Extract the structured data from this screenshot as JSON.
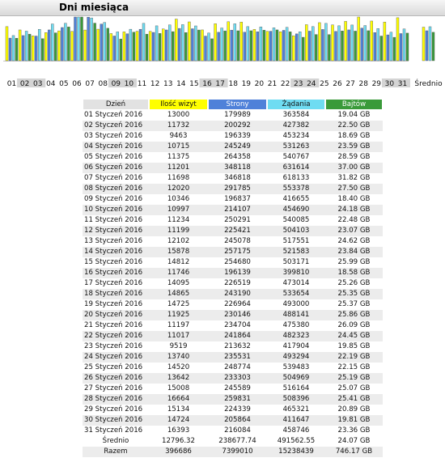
{
  "header": {
    "title": "Dni miesiąca"
  },
  "colors": {
    "visits": "#ffff00",
    "pages": "#4f81d9",
    "hits": "#6fdcf2",
    "bytes": "#3a9a3a",
    "day_header": "#e2e2e2"
  },
  "table": {
    "headers": {
      "day": "Dzień",
      "visits": "Ilość wizyt",
      "pages": "Strony",
      "hits": "Żądania",
      "bytes": "Bajtów"
    },
    "rows": [
      {
        "day": "01 Styczeń 2016",
        "visits": "13000",
        "pages": "179989",
        "hits": "363584",
        "bytes": "19.04 GB"
      },
      {
        "day": "02 Styczeń 2016",
        "visits": "11732",
        "pages": "200292",
        "hits": "427382",
        "bytes": "22.50 GB"
      },
      {
        "day": "03 Styczeń 2016",
        "visits": "9463",
        "pages": "196339",
        "hits": "453234",
        "bytes": "18.69 GB"
      },
      {
        "day": "04 Styczeń 2016",
        "visits": "10715",
        "pages": "245249",
        "hits": "531263",
        "bytes": "23.59 GB"
      },
      {
        "day": "05 Styczeń 2016",
        "visits": "11375",
        "pages": "264358",
        "hits": "540767",
        "bytes": "28.59 GB"
      },
      {
        "day": "06 Styczeń 2016",
        "visits": "11201",
        "pages": "348118",
        "hits": "631614",
        "bytes": "37.00 GB"
      },
      {
        "day": "07 Styczeń 2016",
        "visits": "11698",
        "pages": "346818",
        "hits": "618133",
        "bytes": "31.82 GB"
      },
      {
        "day": "08 Styczeń 2016",
        "visits": "12020",
        "pages": "291785",
        "hits": "553378",
        "bytes": "27.50 GB"
      },
      {
        "day": "09 Styczeń 2016",
        "visits": "10346",
        "pages": "196837",
        "hits": "416655",
        "bytes": "18.40 GB"
      },
      {
        "day": "10 Styczeń 2016",
        "visits": "10997",
        "pages": "214107",
        "hits": "454690",
        "bytes": "24.18 GB"
      },
      {
        "day": "11 Styczeń 2016",
        "visits": "11234",
        "pages": "250291",
        "hits": "540085",
        "bytes": "22.48 GB"
      },
      {
        "day": "12 Styczeń 2016",
        "visits": "11199",
        "pages": "225421",
        "hits": "504103",
        "bytes": "23.07 GB"
      },
      {
        "day": "13 Styczeń 2016",
        "visits": "12102",
        "pages": "245078",
        "hits": "517551",
        "bytes": "24.62 GB"
      },
      {
        "day": "14 Styczeń 2016",
        "visits": "15878",
        "pages": "257175",
        "hits": "521583",
        "bytes": "23.84 GB"
      },
      {
        "day": "15 Styczeń 2016",
        "visits": "14812",
        "pages": "254680",
        "hits": "503171",
        "bytes": "25.99 GB"
      },
      {
        "day": "16 Styczeń 2016",
        "visits": "11746",
        "pages": "196139",
        "hits": "399810",
        "bytes": "18.58 GB"
      },
      {
        "day": "17 Styczeń 2016",
        "visits": "14095",
        "pages": "226519",
        "hits": "473014",
        "bytes": "25.26 GB"
      },
      {
        "day": "18 Styczeń 2016",
        "visits": "14865",
        "pages": "243190",
        "hits": "533654",
        "bytes": "25.35 GB"
      },
      {
        "day": "19 Styczeń 2016",
        "visits": "14725",
        "pages": "226964",
        "hits": "493000",
        "bytes": "25.37 GB"
      },
      {
        "day": "20 Styczeń 2016",
        "visits": "11925",
        "pages": "230146",
        "hits": "488141",
        "bytes": "25.86 GB"
      },
      {
        "day": "21 Styczeń 2016",
        "visits": "11197",
        "pages": "234704",
        "hits": "475380",
        "bytes": "26.09 GB"
      },
      {
        "day": "22 Styczeń 2016",
        "visits": "11017",
        "pages": "241864",
        "hits": "482323",
        "bytes": "24.45 GB"
      },
      {
        "day": "23 Styczeń 2016",
        "visits": "9519",
        "pages": "213632",
        "hits": "417904",
        "bytes": "19.85 GB"
      },
      {
        "day": "24 Styczeń 2016",
        "visits": "13740",
        "pages": "235531",
        "hits": "493294",
        "bytes": "22.19 GB"
      },
      {
        "day": "25 Styczeń 2016",
        "visits": "14520",
        "pages": "248774",
        "hits": "539483",
        "bytes": "22.15 GB"
      },
      {
        "day": "26 Styczeń 2016",
        "visits": "13642",
        "pages": "233303",
        "hits": "504969",
        "bytes": "25.19 GB"
      },
      {
        "day": "27 Styczeń 2016",
        "visits": "15008",
        "pages": "245589",
        "hits": "516164",
        "bytes": "25.07 GB"
      },
      {
        "day": "28 Styczeń 2016",
        "visits": "16664",
        "pages": "259831",
        "hits": "508396",
        "bytes": "25.41 GB"
      },
      {
        "day": "29 Styczeń 2016",
        "visits": "15134",
        "pages": "224339",
        "hits": "465321",
        "bytes": "20.89 GB"
      },
      {
        "day": "30 Styczeń 2016",
        "visits": "14724",
        "pages": "205864",
        "hits": "411647",
        "bytes": "19.81 GB"
      },
      {
        "day": "31 Styczeń 2016",
        "visits": "16393",
        "pages": "216084",
        "hits": "458746",
        "bytes": "23.36 GB"
      }
    ],
    "average": {
      "label": "Średnio",
      "visits": "12796.32",
      "pages": "238677.74",
      "hits": "491562.55",
      "bytes": "24.07 GB"
    },
    "total": {
      "label": "Razem",
      "visits": "396686",
      "pages": "7399010",
      "hits": "15238439",
      "bytes": "746.17 GB"
    }
  },
  "chart_data": {
    "type": "bar",
    "categories": [
      "01",
      "02",
      "03",
      "04",
      "05",
      "06",
      "07",
      "08",
      "09",
      "10",
      "11",
      "12",
      "13",
      "14",
      "15",
      "16",
      "17",
      "18",
      "19",
      "20",
      "21",
      "22",
      "23",
      "24",
      "25",
      "26",
      "27",
      "28",
      "29",
      "30",
      "31",
      "Średnio"
    ],
    "weekend_indices": [
      1,
      2,
      8,
      9,
      15,
      16,
      22,
      23,
      29,
      30
    ],
    "series": [
      {
        "name": "Ilość wizyt",
        "values": [
          13000,
          11732,
          9463,
          10715,
          11375,
          11201,
          11698,
          12020,
          10346,
          10997,
          11234,
          11199,
          12102,
          15878,
          14812,
          11746,
          14095,
          14865,
          14725,
          11925,
          11197,
          11017,
          9519,
          13740,
          14520,
          13642,
          15008,
          16664,
          15134,
          14724,
          16393,
          12796.32
        ]
      },
      {
        "name": "Strony",
        "values": [
          179989,
          200292,
          196339,
          245249,
          264358,
          348118,
          346818,
          291785,
          196837,
          214107,
          250291,
          225421,
          245078,
          257175,
          254680,
          196139,
          226519,
          243190,
          226964,
          230146,
          234704,
          241864,
          213632,
          235531,
          248774,
          233303,
          245589,
          259831,
          224339,
          205864,
          216084,
          238677.74
        ]
      },
      {
        "name": "Żądania",
        "values": [
          363584,
          427382,
          453234,
          531263,
          540767,
          631614,
          618133,
          553378,
          416655,
          454690,
          540085,
          504103,
          517551,
          521583,
          503171,
          399810,
          473014,
          533654,
          493000,
          488141,
          475380,
          482323,
          417904,
          493294,
          539483,
          504969,
          516164,
          508396,
          465321,
          411647,
          458746,
          491562.55
        ]
      },
      {
        "name": "Bajtów",
        "values": [
          19.04,
          22.5,
          18.69,
          23.59,
          28.59,
          37.0,
          31.82,
          27.5,
          18.4,
          24.18,
          22.48,
          23.07,
          24.62,
          23.84,
          25.99,
          18.58,
          25.26,
          25.35,
          25.37,
          25.86,
          26.09,
          24.45,
          19.85,
          22.19,
          22.15,
          25.19,
          25.07,
          25.41,
          20.89,
          19.81,
          23.36,
          24.07
        ]
      }
    ]
  }
}
